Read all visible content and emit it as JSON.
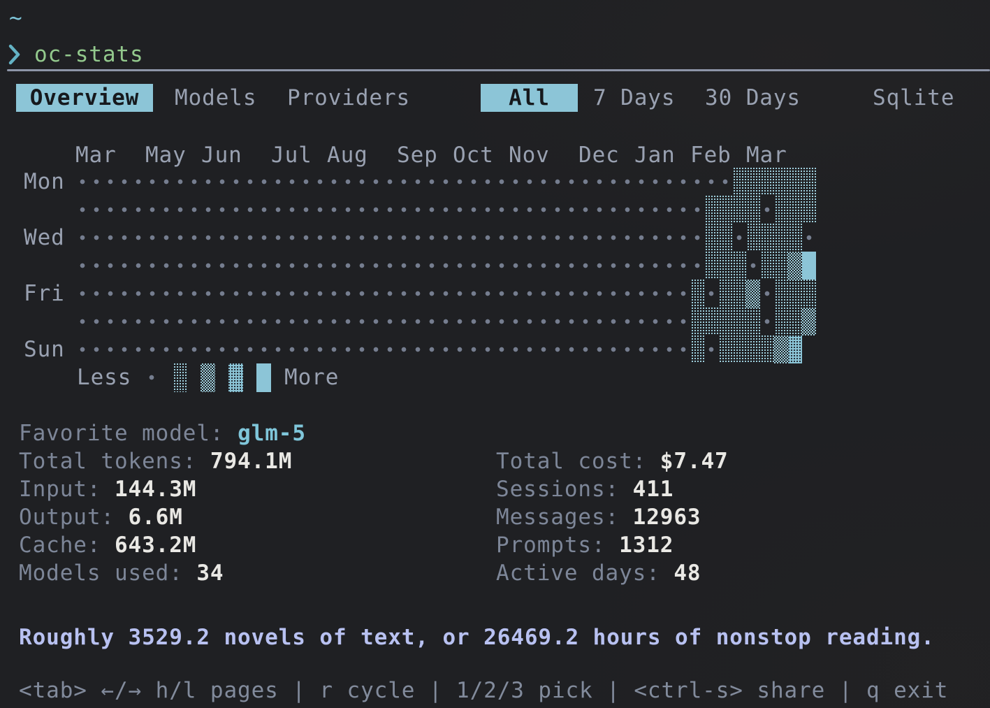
{
  "colors": {
    "bg": "#1f2023",
    "fg": "#99a1b1",
    "fg_dim": "#7d8698",
    "value": "#e9e8e4",
    "accent": "#8cc5d7",
    "accent_dither": "#9fd0de",
    "accent_text": "#7fc6da",
    "tab_text": "#16191d",
    "green": "#93c98d",
    "lavender": "#b8c1f1",
    "statusbar": "#828b9c",
    "rule": "#8d95a8",
    "dot": "#757d8f",
    "prompt": "#64b2c4"
  },
  "terminal": {
    "tilde": "~",
    "command": "oc-stats"
  },
  "tabs": {
    "pages": [
      {
        "label": "Overview",
        "active": true
      },
      {
        "label": "Models",
        "active": false
      },
      {
        "label": "Providers",
        "active": false
      }
    ],
    "ranges": [
      {
        "label": "All",
        "active": true
      },
      {
        "label": "7 Days",
        "active": false
      },
      {
        "label": "30 Days",
        "active": false
      }
    ],
    "sqlite_label": "Sqlite"
  },
  "heatmap": {
    "months": [
      {
        "label": "Mar",
        "col": 0
      },
      {
        "label": "May",
        "col": 5
      },
      {
        "label": "Jun",
        "col": 9
      },
      {
        "label": "Jul",
        "col": 14
      },
      {
        "label": "Aug",
        "col": 18
      },
      {
        "label": "Sep",
        "col": 23
      },
      {
        "label": "Oct",
        "col": 27
      },
      {
        "label": "Nov",
        "col": 31
      },
      {
        "label": "Dec",
        "col": 36
      },
      {
        "label": "Jan",
        "col": 40
      },
      {
        "label": "Feb",
        "col": 44
      },
      {
        "label": "Mar",
        "col": 48
      }
    ],
    "day_labels": [
      {
        "label": "Mon",
        "row": 0
      },
      {
        "label": "Wed",
        "row": 2
      },
      {
        "label": "Fri",
        "row": 4
      },
      {
        "label": "Sun",
        "row": 6
      }
    ],
    "grid": [
      {
        "lead_dots": 47,
        "tail": "111111"
      },
      {
        "lead_dots": 45,
        "tail": "1111.111"
      },
      {
        "lead_dots": 45,
        "tail": "11.1111."
      },
      {
        "lead_dots": 45,
        "tail": "111.1124"
      },
      {
        "lead_dots": 44,
        "tail": "1.112.111"
      },
      {
        "lead_dots": 44,
        "tail": "11111.112"
      },
      {
        "lead_dots": 44,
        "tail": "1.1111230"
      }
    ],
    "legend": {
      "less": "Less",
      "more": "More"
    }
  },
  "stats": {
    "left": [
      {
        "label": "Favorite model:",
        "value": "glm-5"
      },
      {
        "label": "Total tokens:",
        "value": "794.1M"
      },
      {
        "label": "Input:",
        "value": "144.3M"
      },
      {
        "label": "Output:",
        "value": "6.6M"
      },
      {
        "label": "Cache:",
        "value": "643.2M"
      },
      {
        "label": "Models used:",
        "value": "34"
      }
    ],
    "right": [
      {
        "label": "Total cost:",
        "value": "$7.47"
      },
      {
        "label": "Sessions:",
        "value": "411"
      },
      {
        "label": "Messages:",
        "value": "12963"
      },
      {
        "label": "Prompts:",
        "value": "1312"
      },
      {
        "label": "Active days:",
        "value": "48"
      }
    ]
  },
  "summary": "Roughly 3529.2 novels of text, or 26469.2 hours of nonstop reading.",
  "statusbar": "<tab> ←/→ h/l pages | r cycle | 1/2/3 pick | <ctrl-s> share | q exit"
}
